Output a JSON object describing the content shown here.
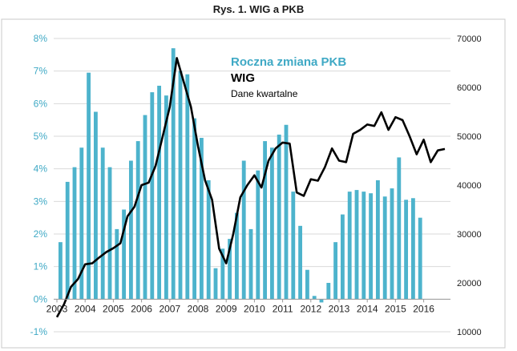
{
  "figure_title": "Rys. 1. WIG a PKB",
  "colors": {
    "bars": "#4db3cc",
    "line": "#000000",
    "left_axis_text": "#3fa9c5",
    "right_axis_text": "#222222",
    "frame": "#c0c0c0"
  },
  "legend": {
    "pkb": "Roczna zmiana PKB",
    "wig": "WIG",
    "note": "Dane kwartalne"
  },
  "chart_data": {
    "type": "bar+line",
    "title": "Rys. 1. WIG a PKB",
    "frequency": "quarterly",
    "x_tick_labels": [
      "2003",
      "2004",
      "2005",
      "2006",
      "2007",
      "2008",
      "2009",
      "2010",
      "2011",
      "2012",
      "2013",
      "2014",
      "2015",
      "2016"
    ],
    "y_left": {
      "min": -1,
      "max": 8,
      "step": 1,
      "format": "percent",
      "tick_labels": [
        "-1%",
        "0%",
        "1%",
        "2%",
        "3%",
        "4%",
        "5%",
        "6%",
        "7%",
        "8%"
      ]
    },
    "y_right": {
      "min": 10000,
      "max": 70000,
      "step": 10000,
      "tick_labels": [
        "10000",
        "20000",
        "30000",
        "40000",
        "50000",
        "60000",
        "70000"
      ]
    },
    "series": [
      {
        "name": "Roczna zmiana PKB",
        "kind": "bar",
        "axis": "left",
        "unit": "%",
        "values": [
          1.75,
          3.6,
          4.05,
          4.65,
          6.95,
          5.75,
          4.65,
          4.05,
          2.15,
          2.75,
          4.25,
          4.85,
          5.65,
          6.35,
          6.55,
          6.25,
          7.7,
          7.0,
          6.9,
          5.55,
          4.95,
          3.65,
          0.95,
          1.55,
          1.85,
          2.65,
          4.25,
          2.15,
          3.95,
          4.85,
          4.65,
          5.05,
          5.35,
          3.3,
          2.25,
          0.9,
          0.1,
          -0.1,
          0.5,
          1.75,
          2.6,
          3.3,
          3.35,
          3.3,
          3.25,
          3.65,
          3.15,
          3.4,
          4.35,
          3.05,
          3.1,
          2.5
        ]
      },
      {
        "name": "WIG",
        "kind": "line",
        "axis": "right",
        "values": [
          13000,
          15600,
          19200,
          20800,
          23800,
          24000,
          25200,
          26300,
          27100,
          28100,
          33600,
          35600,
          40000,
          40500,
          44000,
          50000,
          56000,
          66000,
          61000,
          56000,
          48000,
          41000,
          37000,
          27000,
          24000,
          30000,
          37500,
          40000,
          42000,
          39500,
          45000,
          47500,
          48700,
          48500,
          38500,
          37800,
          41200,
          40900,
          43700,
          47500,
          45000,
          44700,
          50500,
          51300,
          52400,
          52100,
          54900,
          51300,
          53900,
          53300,
          50000,
          46300,
          49300,
          44700,
          47100,
          47400
        ]
      }
    ]
  }
}
